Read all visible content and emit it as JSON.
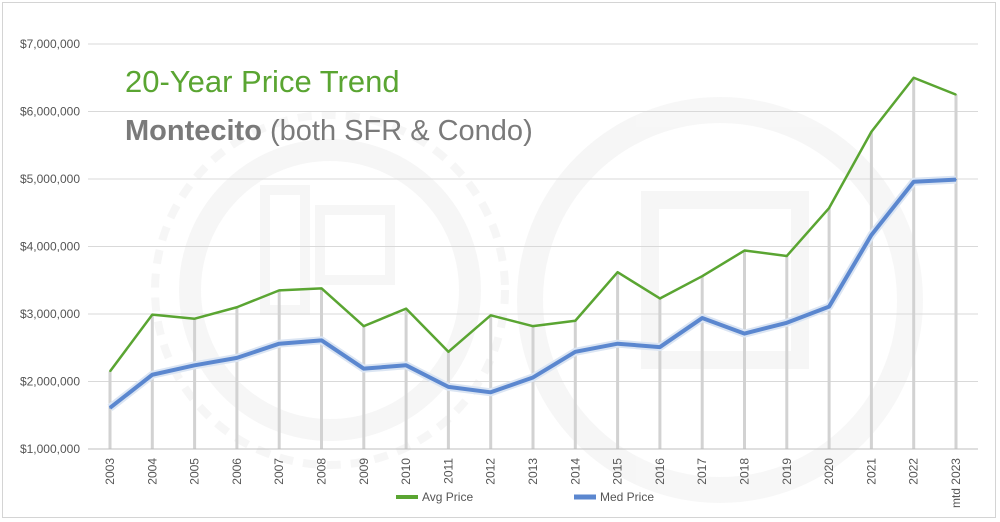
{
  "chart_data": {
    "type": "line",
    "title": "20-Year Price Trend",
    "subtitle_bold": "Montecito",
    "subtitle_rest": " (both SFR & Condo)",
    "categories": [
      "2003",
      "2004",
      "2005",
      "2006",
      "2007",
      "2008",
      "2009",
      "2010",
      "2011",
      "2012",
      "2013",
      "2014",
      "2015",
      "2016",
      "2017",
      "2018",
      "2019",
      "2020",
      "2021",
      "2022",
      "mtd 2023"
    ],
    "series": [
      {
        "name": "Avg Price",
        "color": "#5aa532",
        "values": [
          2150000,
          2990000,
          2930000,
          3100000,
          3350000,
          3380000,
          2820000,
          3080000,
          2440000,
          2980000,
          2820000,
          2900000,
          3620000,
          3230000,
          3560000,
          3940000,
          3860000,
          4570000,
          5700000,
          6500000,
          6250000
        ]
      },
      {
        "name": "Med Price",
        "color": "#5b87cf",
        "values": [
          1610000,
          2100000,
          2240000,
          2350000,
          2560000,
          2610000,
          2190000,
          2240000,
          1920000,
          1840000,
          2060000,
          2440000,
          2560000,
          2510000,
          2940000,
          2710000,
          2870000,
          3110000,
          4170000,
          4960000,
          4990000
        ]
      }
    ],
    "ylim": [
      1000000,
      7000000
    ],
    "yticks": [
      1000000,
      2000000,
      3000000,
      4000000,
      5000000,
      6000000,
      7000000
    ],
    "ytick_labels": [
      "$1,000,000",
      "$2,000,000",
      "$3,000,000",
      "$4,000,000",
      "$5,000,000",
      "$6,000,000",
      "$7,000,000"
    ],
    "grid": true,
    "legend": "bottom"
  }
}
